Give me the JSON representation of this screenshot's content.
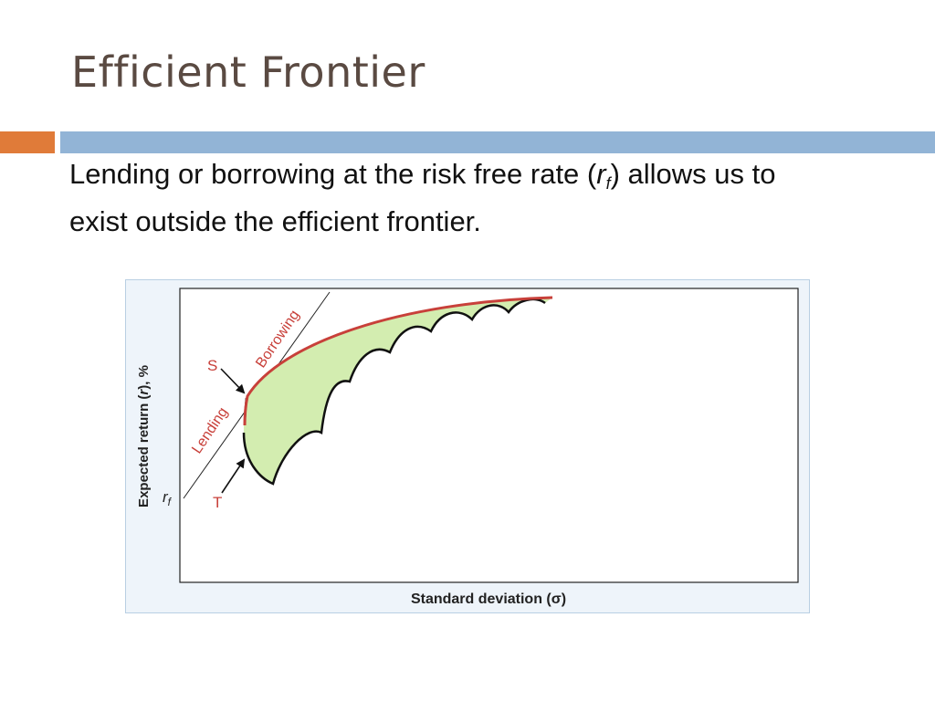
{
  "slide": {
    "title": "Efficient Frontier",
    "body_line1_before": "Lending or borrowing at the risk free rate (",
    "body_rf_symbol": "r",
    "body_rf_subscript": "f",
    "body_line1_after": ") allows us to",
    "body_line2": "exist outside the efficient frontier.",
    "accent_color": "#e07b39",
    "rule_color": "#92b4d6"
  },
  "diagram": {
    "ylabel_before": "Expected return (",
    "ylabel_symbol": "r",
    "ylabel_after": "), %",
    "xlabel": "Standard deviation (σ)",
    "rf_label": "r",
    "rf_sub": "f",
    "lending_label": "Lending",
    "borrowing_label": "Borrowing",
    "point_s_label": "S",
    "point_t_label": "T",
    "colors": {
      "frontier": "#c8403a",
      "feasible_fill": "#d3edb0",
      "label_red": "#c8403a",
      "frame_border": "#b9cfe3",
      "frame_bg": "#eef4fa"
    }
  }
}
